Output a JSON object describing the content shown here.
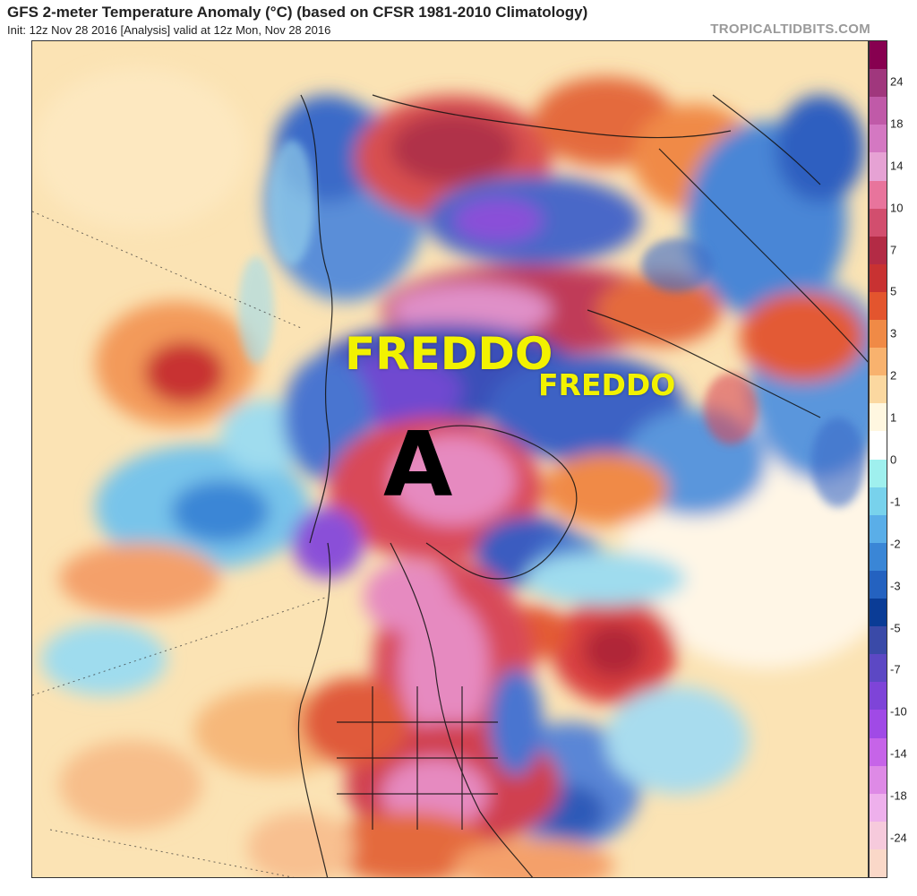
{
  "header": {
    "title": "GFS 2-meter Temperature Anomaly (°C) (based on CFSR 1981-2010 Climatology)",
    "subtitle": "Init: 12z Nov 28 2016   [Analysis]   valid at 12z Mon, Nov 28 2016",
    "brand": "TROPICALTIDBITS.COM"
  },
  "annotations": {
    "freddo_large": "FREDDO",
    "freddo_small": "FREDDO",
    "anticyclone": "A"
  },
  "colors": {
    "freddo": "#f2f200",
    "anticyclone": "#000000"
  },
  "colorbar": {
    "labels": [
      "24",
      "18",
      "14",
      "10",
      "7",
      "5",
      "3",
      "2",
      "1",
      "0",
      "-1",
      "-2",
      "-3",
      "-5",
      "-7",
      "-10",
      "-14",
      "-18",
      "-24"
    ],
    "colors": [
      "#870050",
      "#a0377d",
      "#c05aa8",
      "#d478c2",
      "#e6a2d4",
      "#e8749c",
      "#d24e6e",
      "#b32b45",
      "#c83232",
      "#e3552e",
      "#f08a46",
      "#f8b26e",
      "#fbd8a0",
      "#fff7e0",
      "#ffffff",
      "#9ff0ee",
      "#78d2ec",
      "#5aaee8",
      "#3a86d6",
      "#2462c0",
      "#0a3c96",
      "#3a4aa8",
      "#5c48c4",
      "#7e44d8",
      "#a04ae6",
      "#c664e8",
      "#de8ae6",
      "#eeb0ec",
      "#f6cadc",
      "#fad8c8"
    ]
  }
}
